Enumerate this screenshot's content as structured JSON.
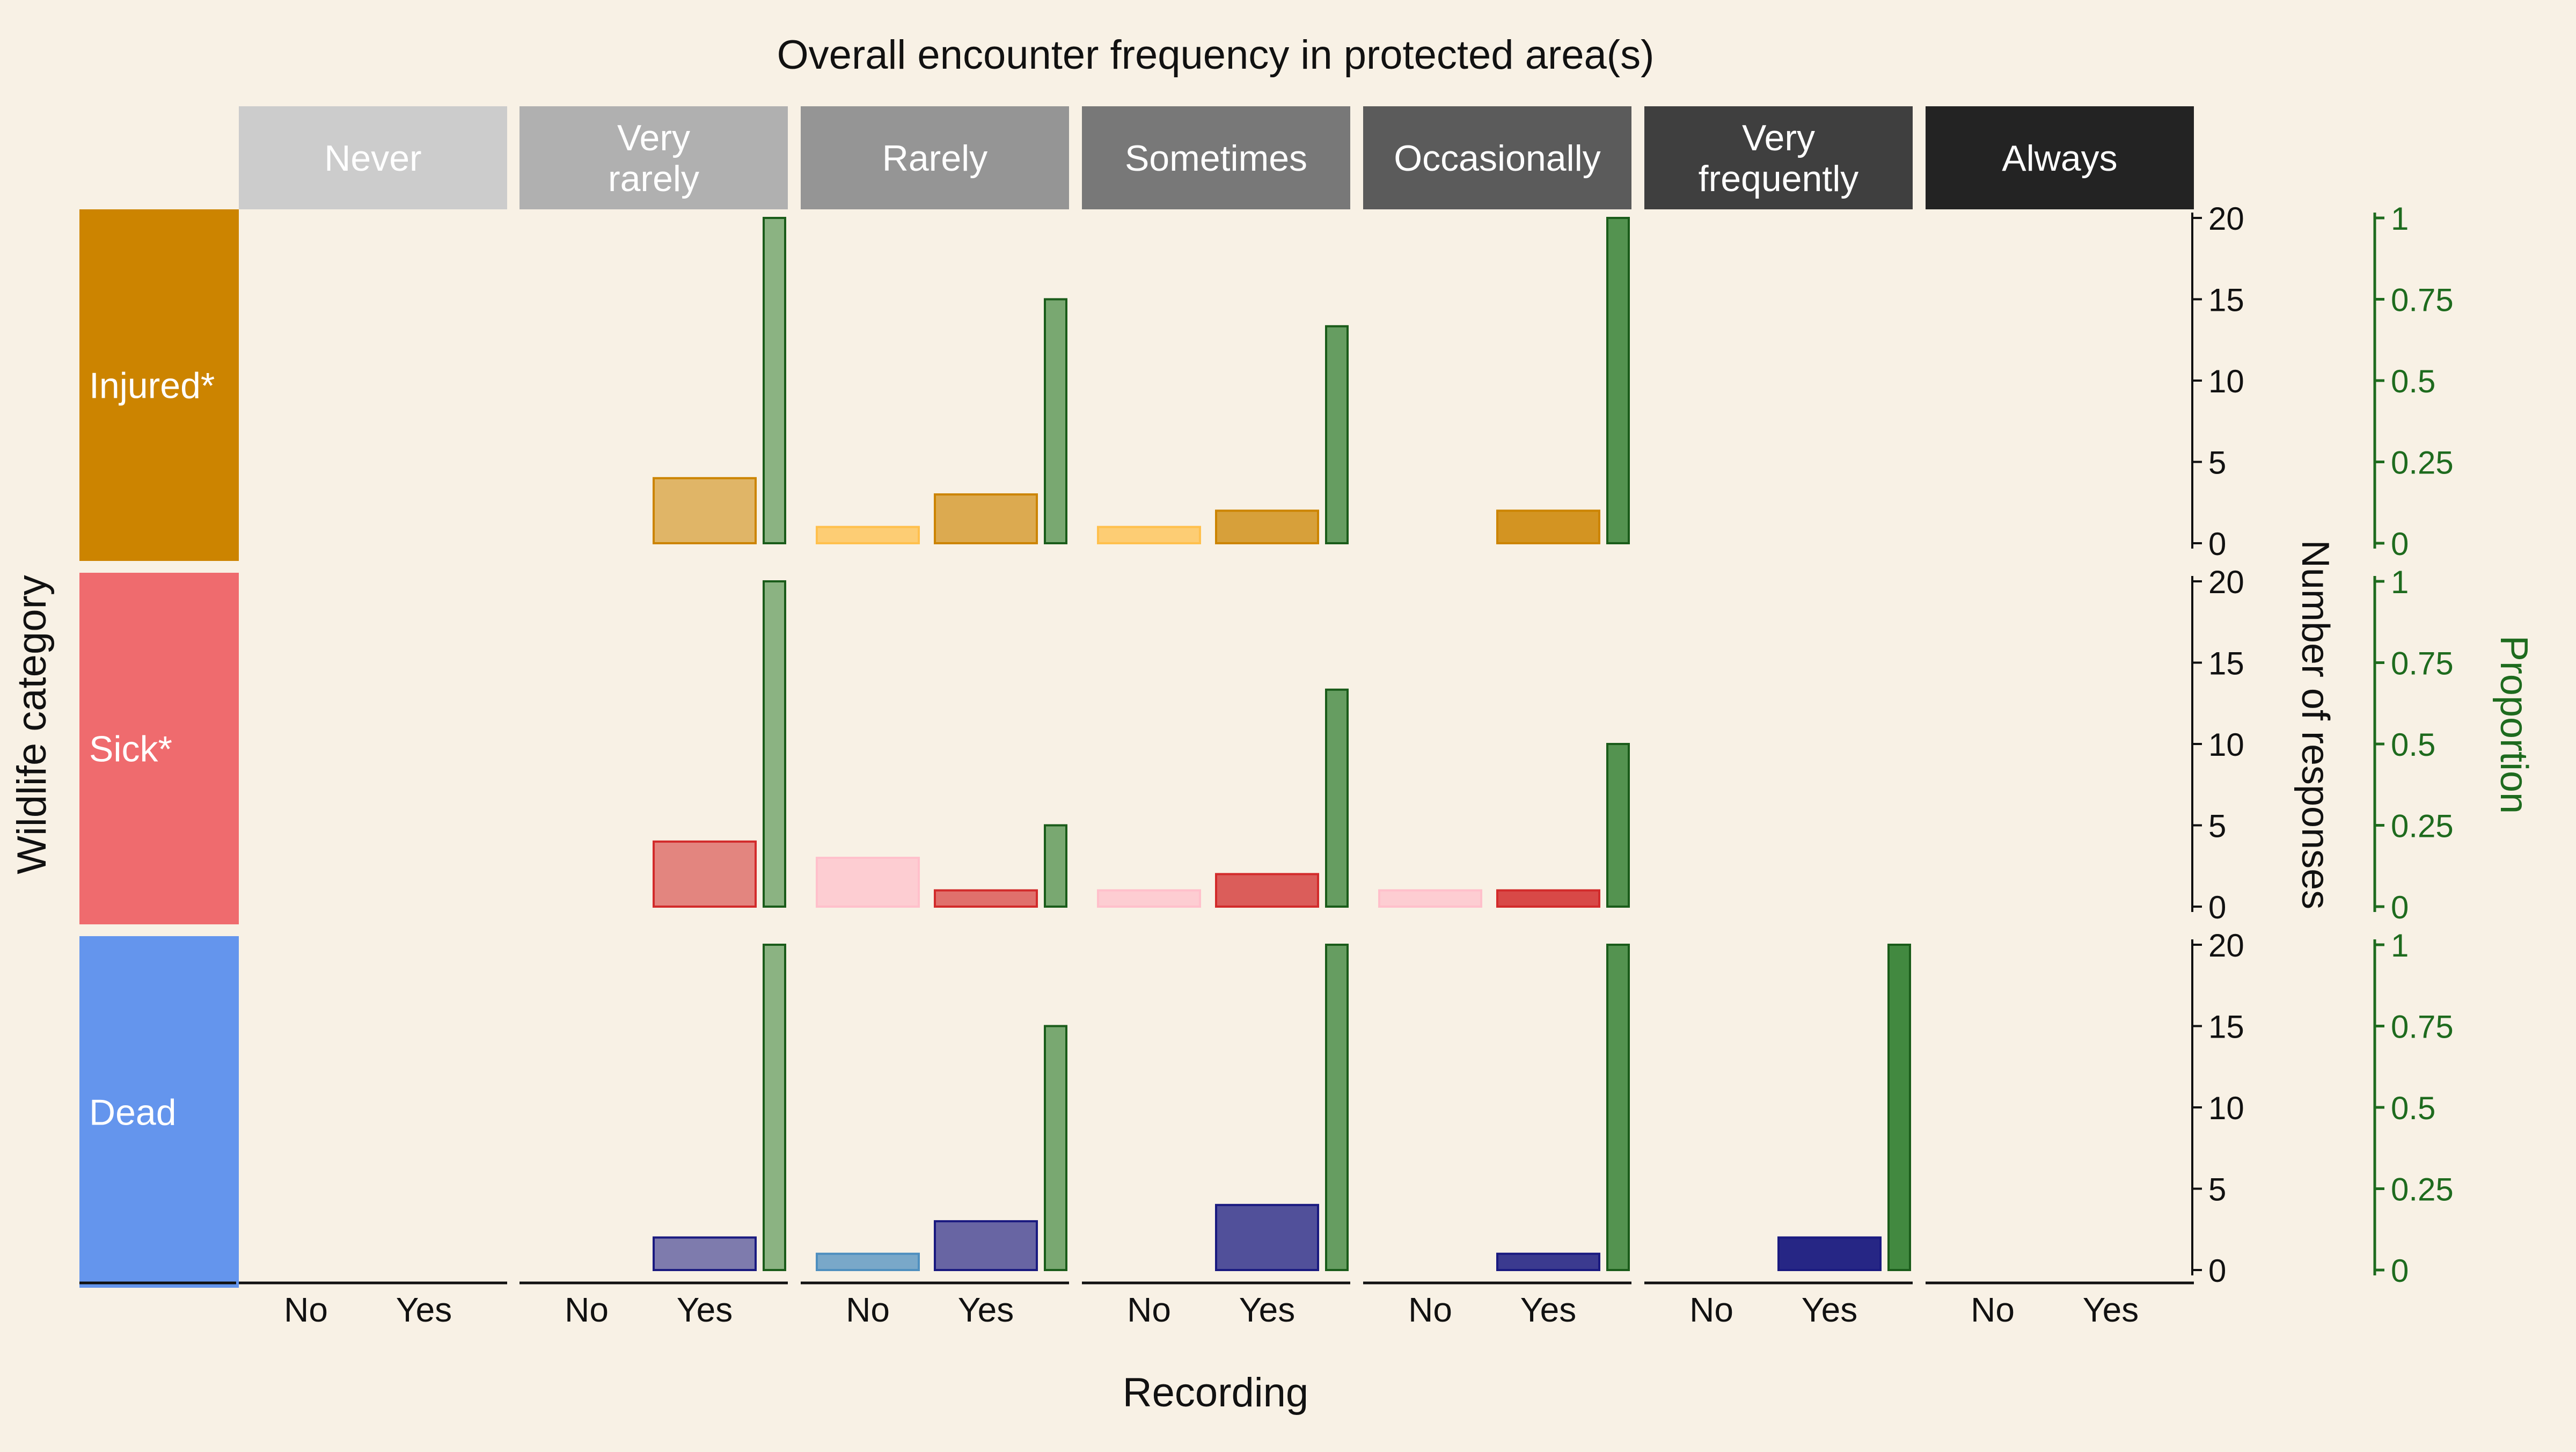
{
  "chart_data": {
    "type": "bar",
    "title": "Overall encounter frequency in protected area(s)",
    "xlabel": "Recording",
    "ylabel": "Wildlife category",
    "y2label": "Number of responses",
    "y3label": "Proportion",
    "frequencies": [
      "Never",
      "Very rarely",
      "Rarely",
      "Sometimes",
      "Occasionally",
      "Very frequently",
      "Always"
    ],
    "categories": [
      "No",
      "Yes"
    ],
    "rows": [
      {
        "name": "Injured*",
        "color": "#cc8400",
        "counts": [
          [
            0,
            0
          ],
          [
            0,
            4
          ],
          [
            1,
            3
          ],
          [
            1,
            2
          ],
          [
            0,
            2
          ],
          [
            0,
            0
          ],
          [
            0,
            0
          ]
        ],
        "proportions": [
          null,
          1,
          0.75,
          0.667,
          1,
          null,
          null
        ]
      },
      {
        "name": "Sick*",
        "color": "#ef6b6e",
        "counts": [
          [
            0,
            0
          ],
          [
            0,
            4
          ],
          [
            3,
            1
          ],
          [
            1,
            2
          ],
          [
            1,
            1
          ],
          [
            0,
            0
          ],
          [
            0,
            0
          ]
        ],
        "proportions": [
          null,
          1,
          0.25,
          0.667,
          0.5,
          null,
          null
        ]
      },
      {
        "name": "Dead",
        "color": "#6495ed",
        "counts": [
          [
            0,
            0
          ],
          [
            0,
            2
          ],
          [
            1,
            3
          ],
          [
            0,
            4
          ],
          [
            0,
            1
          ],
          [
            0,
            2
          ],
          [
            0,
            0
          ]
        ],
        "proportions": [
          null,
          1,
          0.75,
          1,
          1,
          1,
          null
        ]
      }
    ],
    "ylim": [
      0,
      20
    ],
    "y_ticks": [
      0,
      5,
      10,
      15,
      20
    ],
    "y2lim": [
      0,
      1
    ],
    "y2_ticks": [
      "0",
      "0.25",
      "0.5",
      "0.75",
      "1"
    ],
    "grid": false,
    "colors": {
      "background": "#f8f1e5",
      "proportion_axis": "#1e6b1e",
      "strip_columns": [
        "#cccccc",
        "#b0b0b0",
        "#959595",
        "#787878",
        "#5b5b5b",
        "#3f3f3f",
        "#232323"
      ],
      "proportion_bar": "#2e7d2e",
      "no_bar": {
        "Injured*": "#ffc04d",
        "Sick*": "#ffc0cb",
        "Dead": "#4f8fbf"
      },
      "yes_bar": {
        "Injured*": "#cc8400",
        "Sick*": "#d22b2b",
        "Dead": "#1a1a80"
      }
    }
  }
}
